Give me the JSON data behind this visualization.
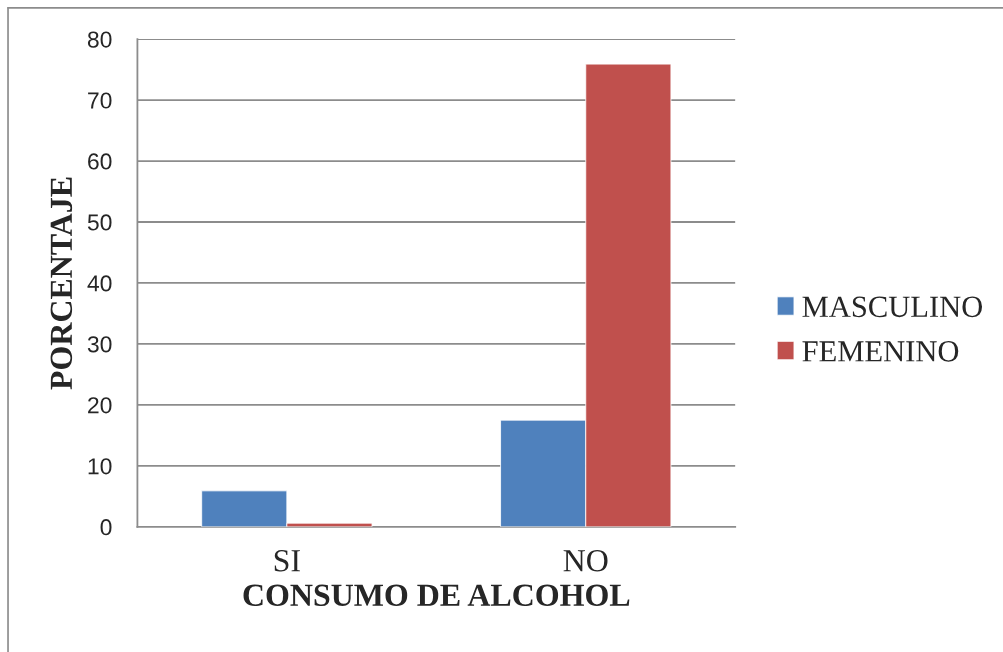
{
  "chart_data": {
    "type": "bar",
    "xlabel": "CONSUMO DE ALCOHOL",
    "ylabel": "PORCENTAJE",
    "categories": [
      "SI",
      "NO"
    ],
    "series": [
      {
        "name": "MASCULINO",
        "color": "#4f81bd",
        "values": [
          5.9,
          17.5
        ]
      },
      {
        "name": "FEMENINO",
        "color": "#c0504d",
        "values": [
          0.6,
          75.9
        ]
      }
    ],
    "ylim": [
      0,
      80
    ],
    "yticks": [
      0,
      10,
      20,
      30,
      40,
      50,
      60,
      70,
      80
    ],
    "grid": "y",
    "legend": "right"
  }
}
